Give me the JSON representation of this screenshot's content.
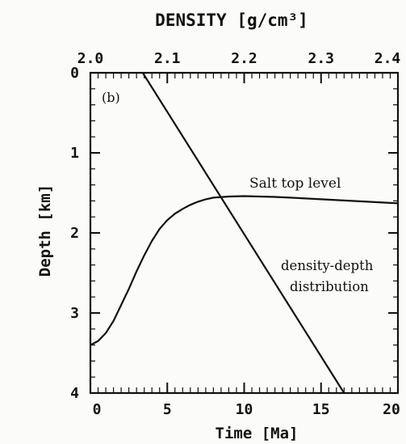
{
  "chart_data": {
    "type": "line",
    "panel_label": "(b)",
    "top_axis": {
      "label": "DENSITY [g/cm³]",
      "range": [
        2.0,
        2.4
      ],
      "ticks": [
        2.0,
        2.1,
        2.2,
        2.3,
        2.4
      ],
      "tick_labels": [
        "2.0",
        "2.1",
        "2.2",
        "2.3",
        "2.4"
      ]
    },
    "bottom_axis": {
      "label": "Time [Ma]",
      "range": [
        0,
        20
      ],
      "ticks": [
        0,
        5,
        10,
        15,
        20
      ],
      "tick_labels": [
        "0",
        "5",
        "10",
        "15",
        "20"
      ]
    },
    "left_axis": {
      "label": "Depth [km]",
      "range": [
        0,
        4
      ],
      "inverted": true,
      "ticks": [
        0,
        1,
        2,
        3,
        4
      ],
      "tick_labels": [
        "0",
        "1",
        "2",
        "3",
        "4"
      ]
    },
    "series": [
      {
        "name": "Salt top level",
        "axis": "time",
        "x": [
          0,
          0.5,
          1,
          1.5,
          2,
          2.5,
          3,
          3.5,
          4,
          4.5,
          5,
          5.5,
          6,
          6.5,
          7,
          7.5,
          8,
          9,
          10,
          11,
          12,
          13,
          14,
          15,
          16,
          17,
          18,
          19,
          20
        ],
        "y": [
          3.4,
          3.35,
          3.25,
          3.1,
          2.9,
          2.7,
          2.48,
          2.28,
          2.1,
          1.95,
          1.84,
          1.76,
          1.7,
          1.65,
          1.61,
          1.58,
          1.56,
          1.545,
          1.54,
          1.545,
          1.55,
          1.56,
          1.57,
          1.58,
          1.59,
          1.6,
          1.61,
          1.62,
          1.63
        ]
      },
      {
        "name": "density-depth distribution",
        "axis": "density",
        "x": [
          2.068,
          2.33
        ],
        "y": [
          0,
          4
        ]
      }
    ],
    "annotations": [
      {
        "text": "Salt top level",
        "target": "Salt top level"
      },
      {
        "text": "density-depth",
        "target": "density-depth distribution"
      },
      {
        "text": "distribution",
        "target": "density-depth distribution"
      }
    ]
  }
}
